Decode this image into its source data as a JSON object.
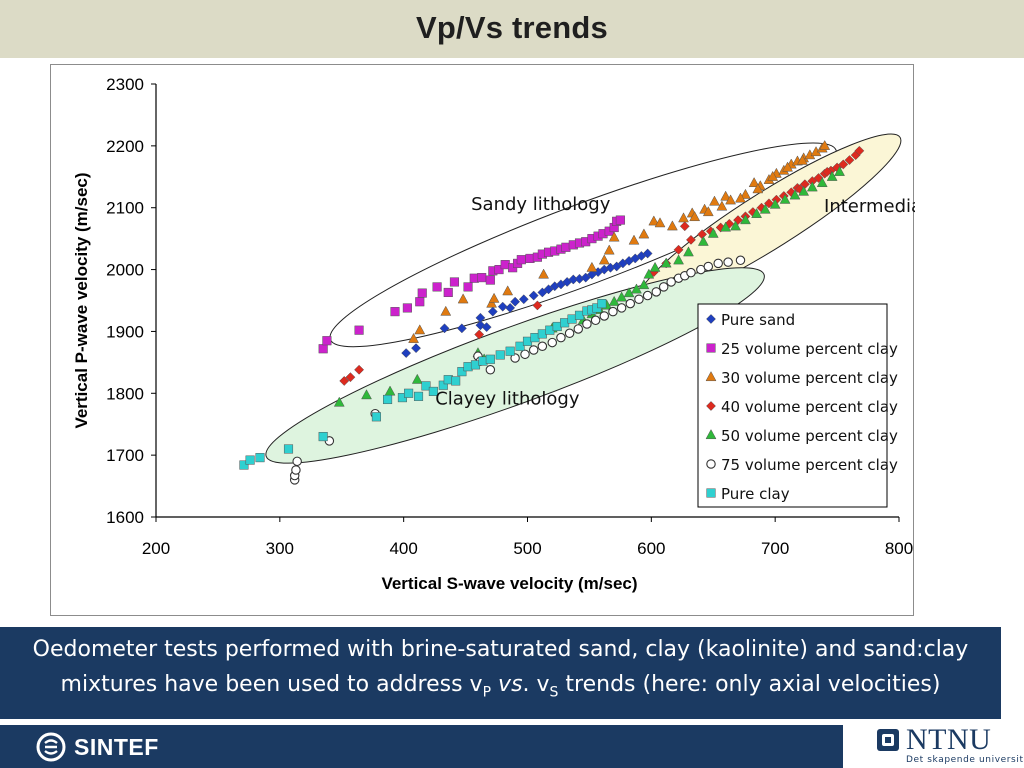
{
  "slide": {
    "title": "Vp/Vs trends",
    "caption_line1": "Oedometer tests performed with brine-saturated sand, clay (kaolinite) and sand:clay",
    "caption_pre": "mixtures have been used to address v",
    "caption_sub1": "P",
    "caption_vs": "vs",
    "caption_mid": ". v",
    "caption_sub2": "S",
    "caption_post": " trends (here: only axial velocities)",
    "sintef_label": "SINTEF",
    "ntnu_label": "NTNU",
    "ntnu_sub": "Det skapende universitet"
  },
  "chart_data": {
    "type": "scatter",
    "xlabel": "Vertical S-wave velocity (m/sec)",
    "ylabel": "Vertical P-wave velocity (m/sec)",
    "xlim": [
      200,
      800
    ],
    "ylim": [
      1600,
      2300
    ],
    "xticks": [
      200,
      300,
      400,
      500,
      600,
      700,
      800
    ],
    "yticks": [
      1600,
      1700,
      1800,
      1900,
      2000,
      2100,
      2200,
      2300
    ],
    "legend_position": "lower-right",
    "annotations": [
      "Sandy lithology",
      "Intermediate",
      "Clayey lithology"
    ],
    "series": [
      {
        "name": "Pure sand",
        "marker": "diamond",
        "color": "#1f3fbf",
        "points": [
          [
            402,
            1865
          ],
          [
            410,
            1873
          ],
          [
            433,
            1905
          ],
          [
            447,
            1905
          ],
          [
            462,
            1910
          ],
          [
            467,
            1907
          ],
          [
            462,
            1922
          ],
          [
            472,
            1932
          ],
          [
            480,
            1940
          ],
          [
            486,
            1938
          ],
          [
            490,
            1948
          ],
          [
            497,
            1952
          ],
          [
            505,
            1958
          ],
          [
            512,
            1963
          ],
          [
            517,
            1968
          ],
          [
            522,
            1973
          ],
          [
            527,
            1976
          ],
          [
            532,
            1980
          ],
          [
            537,
            1984
          ],
          [
            542,
            1985
          ],
          [
            547,
            1987
          ],
          [
            552,
            1992
          ],
          [
            557,
            1996
          ],
          [
            562,
            2000
          ],
          [
            567,
            2003
          ],
          [
            572,
            2005
          ],
          [
            577,
            2010
          ],
          [
            582,
            2014
          ],
          [
            587,
            2018
          ],
          [
            592,
            2022
          ],
          [
            597,
            2026
          ]
        ]
      },
      {
        "name": "25 volume percent clay",
        "marker": "square",
        "color": "#cc22cc",
        "points": [
          [
            335,
            1872
          ],
          [
            338,
            1885
          ],
          [
            364,
            1902
          ],
          [
            393,
            1932
          ],
          [
            403,
            1938
          ],
          [
            413,
            1948
          ],
          [
            415,
            1962
          ],
          [
            427,
            1972
          ],
          [
            436,
            1963
          ],
          [
            441,
            1980
          ],
          [
            452,
            1972
          ],
          [
            457,
            1986
          ],
          [
            463,
            1987
          ],
          [
            470,
            1983
          ],
          [
            472,
            1998
          ],
          [
            477,
            2000
          ],
          [
            482,
            2008
          ],
          [
            488,
            2003
          ],
          [
            492,
            2010
          ],
          [
            495,
            2016
          ],
          [
            502,
            2018
          ],
          [
            508,
            2020
          ],
          [
            512,
            2025
          ],
          [
            517,
            2028
          ],
          [
            522,
            2030
          ],
          [
            527,
            2033
          ],
          [
            531,
            2036
          ],
          [
            537,
            2040
          ],
          [
            542,
            2043
          ],
          [
            547,
            2045
          ],
          [
            552,
            2050
          ],
          [
            557,
            2054
          ],
          [
            561,
            2058
          ],
          [
            566,
            2062
          ],
          [
            570,
            2068
          ],
          [
            572,
            2078
          ],
          [
            575,
            2080
          ]
        ]
      },
      {
        "name": "30 volume percent clay",
        "marker": "triangle",
        "color": "#e07a10",
        "points": [
          [
            408,
            1888
          ],
          [
            413,
            1902
          ],
          [
            434,
            1932
          ],
          [
            448,
            1952
          ],
          [
            471,
            1945
          ],
          [
            473,
            1953
          ],
          [
            484,
            1965
          ],
          [
            513,
            1992
          ],
          [
            552,
            2003
          ],
          [
            562,
            2015
          ],
          [
            566,
            2031
          ],
          [
            570,
            2052
          ],
          [
            586,
            2047
          ],
          [
            594,
            2057
          ],
          [
            602,
            2078
          ],
          [
            607,
            2075
          ],
          [
            617,
            2070
          ],
          [
            626,
            2083
          ],
          [
            633,
            2091
          ],
          [
            643,
            2097
          ],
          [
            651,
            2110
          ],
          [
            660,
            2118
          ],
          [
            664,
            2112
          ],
          [
            676,
            2121
          ],
          [
            683,
            2140
          ],
          [
            688,
            2135
          ],
          [
            695,
            2145
          ],
          [
            701,
            2155
          ],
          [
            707,
            2160
          ],
          [
            713,
            2170
          ],
          [
            718,
            2175
          ],
          [
            723,
            2180
          ],
          [
            728,
            2185
          ],
          [
            733,
            2190
          ],
          [
            738,
            2196
          ],
          [
            740,
            2200
          ],
          [
            722,
            2176
          ],
          [
            710,
            2165
          ],
          [
            698,
            2150
          ],
          [
            686,
            2130
          ],
          [
            672,
            2115
          ],
          [
            657,
            2102
          ],
          [
            646,
            2093
          ],
          [
            635,
            2085
          ]
        ]
      },
      {
        "name": "40 volume percent clay",
        "marker": "diamond",
        "color": "#dd2a1f",
        "points": [
          [
            352,
            1820
          ],
          [
            357,
            1826
          ],
          [
            364,
            1838
          ],
          [
            461,
            1895
          ],
          [
            508,
            1942
          ],
          [
            602,
            1996
          ],
          [
            612,
            2010
          ],
          [
            622,
            2032
          ],
          [
            632,
            2048
          ],
          [
            641,
            2057
          ],
          [
            648,
            2062
          ],
          [
            656,
            2068
          ],
          [
            663,
            2074
          ],
          [
            670,
            2080
          ],
          [
            676,
            2086
          ],
          [
            682,
            2093
          ],
          [
            689,
            2100
          ],
          [
            695,
            2107
          ],
          [
            701,
            2113
          ],
          [
            707,
            2119
          ],
          [
            713,
            2125
          ],
          [
            718,
            2132
          ],
          [
            724,
            2138
          ],
          [
            730,
            2143
          ],
          [
            735,
            2148
          ],
          [
            740,
            2155
          ],
          [
            745,
            2160
          ],
          [
            750,
            2165
          ],
          [
            755,
            2170
          ],
          [
            760,
            2177
          ],
          [
            765,
            2185
          ],
          [
            768,
            2192
          ],
          [
            627,
            2070
          ],
          [
            720,
            2130
          ],
          [
            742,
            2158
          ]
        ]
      },
      {
        "name": "50 volume percent clay",
        "marker": "triangle",
        "color": "#2fb83a",
        "points": [
          [
            348,
            1785
          ],
          [
            370,
            1797
          ],
          [
            389,
            1803
          ],
          [
            411,
            1822
          ],
          [
            460,
            1865
          ],
          [
            465,
            1855
          ],
          [
            520,
            1905
          ],
          [
            545,
            1918
          ],
          [
            552,
            1928
          ],
          [
            558,
            1935
          ],
          [
            564,
            1942
          ],
          [
            570,
            1948
          ],
          [
            576,
            1955
          ],
          [
            582,
            1962
          ],
          [
            588,
            1968
          ],
          [
            594,
            1975
          ],
          [
            598,
            1992
          ],
          [
            603,
            2003
          ],
          [
            612,
            2010
          ],
          [
            622,
            2015
          ],
          [
            630,
            2028
          ],
          [
            642,
            2045
          ],
          [
            650,
            2058
          ],
          [
            660,
            2068
          ],
          [
            668,
            2070
          ],
          [
            676,
            2080
          ],
          [
            685,
            2090
          ],
          [
            692,
            2097
          ],
          [
            700,
            2105
          ],
          [
            708,
            2113
          ],
          [
            716,
            2120
          ],
          [
            723,
            2126
          ],
          [
            730,
            2133
          ],
          [
            738,
            2140
          ],
          [
            746,
            2150
          ],
          [
            752,
            2158
          ]
        ]
      },
      {
        "name": "75 volume percent clay",
        "marker": "circle",
        "color": "#333333",
        "points": [
          [
            312,
            1660
          ],
          [
            312,
            1667
          ],
          [
            313,
            1676
          ],
          [
            314,
            1690
          ],
          [
            340,
            1723
          ],
          [
            377,
            1767
          ],
          [
            460,
            1860
          ],
          [
            462,
            1852
          ],
          [
            470,
            1838
          ],
          [
            490,
            1857
          ],
          [
            498,
            1863
          ],
          [
            505,
            1870
          ],
          [
            512,
            1876
          ],
          [
            520,
            1882
          ],
          [
            527,
            1890
          ],
          [
            534,
            1897
          ],
          [
            541,
            1904
          ],
          [
            548,
            1912
          ],
          [
            555,
            1918
          ],
          [
            562,
            1925
          ],
          [
            569,
            1932
          ],
          [
            576,
            1938
          ],
          [
            583,
            1945
          ],
          [
            590,
            1952
          ],
          [
            597,
            1958
          ],
          [
            604,
            1964
          ],
          [
            610,
            1972
          ],
          [
            616,
            1980
          ],
          [
            622,
            1986
          ],
          [
            627,
            1990
          ],
          [
            632,
            1995
          ],
          [
            640,
            2000
          ],
          [
            646,
            2005
          ],
          [
            654,
            2010
          ],
          [
            662,
            2012
          ],
          [
            672,
            2015
          ]
        ]
      },
      {
        "name": "Pure clay",
        "marker": "square",
        "color": "#2fd0d0",
        "points": [
          [
            271,
            1684
          ],
          [
            276,
            1692
          ],
          [
            284,
            1696
          ],
          [
            307,
            1710
          ],
          [
            335,
            1730
          ],
          [
            378,
            1762
          ],
          [
            387,
            1790
          ],
          [
            399,
            1793
          ],
          [
            404,
            1800
          ],
          [
            412,
            1795
          ],
          [
            418,
            1812
          ],
          [
            424,
            1803
          ],
          [
            432,
            1813
          ],
          [
            436,
            1822
          ],
          [
            442,
            1820
          ],
          [
            447,
            1835
          ],
          [
            452,
            1843
          ],
          [
            458,
            1846
          ],
          [
            464,
            1852
          ],
          [
            470,
            1855
          ],
          [
            478,
            1862
          ],
          [
            486,
            1868
          ],
          [
            494,
            1876
          ],
          [
            500,
            1884
          ],
          [
            506,
            1890
          ],
          [
            512,
            1896
          ],
          [
            518,
            1902
          ],
          [
            524,
            1908
          ],
          [
            530,
            1914
          ],
          [
            536,
            1920
          ],
          [
            542,
            1926
          ],
          [
            548,
            1933
          ],
          [
            552,
            1935
          ],
          [
            556,
            1938
          ],
          [
            560,
            1945
          ]
        ]
      }
    ]
  }
}
